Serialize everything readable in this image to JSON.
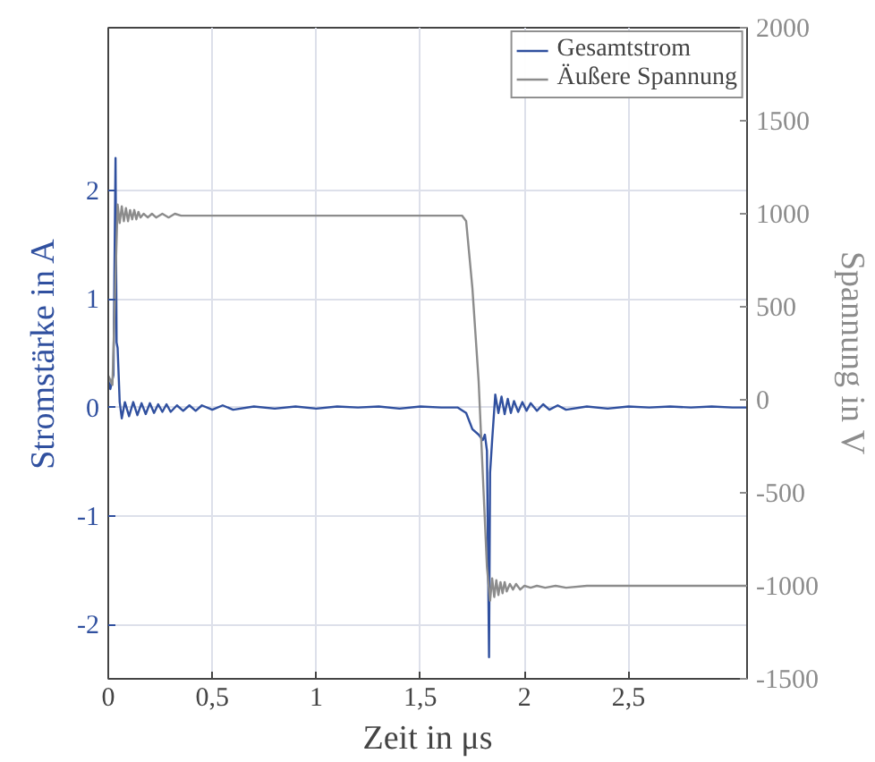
{
  "chart_data": {
    "type": "line",
    "xlabel": "Zeit in μs",
    "ylabel": "Stromstärke in A",
    "y2label": "Spannung in V",
    "xlim": [
      0,
      3.07
    ],
    "xticks": [
      0,
      {
        "value": 0.5,
        "label": "0,5"
      },
      1,
      {
        "value": 1.5,
        "label": "1,5"
      },
      2,
      {
        "value": 2.5,
        "label": "2,5"
      }
    ],
    "ylim": [
      -2.5,
      3.5
    ],
    "yticks": [
      -2,
      -1,
      0,
      1,
      2
    ],
    "y2lim": [
      -1500,
      2000
    ],
    "y2ticks": [
      -1500,
      -1000,
      -500,
      0,
      500,
      1000,
      1500,
      2000
    ],
    "grid": true,
    "legend": "top right",
    "line_style": "solid",
    "series": [
      {
        "name": "Gesamtstrom",
        "color": "#30509f",
        "axis": "y",
        "x": [
          0,
          0.01,
          0.025,
          0.035,
          0.04,
          0.045,
          0.055,
          0.065,
          0.08,
          0.1,
          0.12,
          0.14,
          0.16,
          0.18,
          0.2,
          0.22,
          0.24,
          0.26,
          0.28,
          0.3,
          0.33,
          0.36,
          0.39,
          0.42,
          0.45,
          0.5,
          0.55,
          0.6,
          0.7,
          0.8,
          0.9,
          1.0,
          1.1,
          1.2,
          1.3,
          1.4,
          1.5,
          1.6,
          1.68,
          1.72,
          1.75,
          1.78,
          1.8,
          1.81,
          1.82,
          1.83,
          1.835,
          1.845,
          1.86,
          1.875,
          1.89,
          1.905,
          1.92,
          1.935,
          1.95,
          1.97,
          1.99,
          2.01,
          2.03,
          2.06,
          2.09,
          2.12,
          2.16,
          2.2,
          2.3,
          2.4,
          2.5,
          2.6,
          2.7,
          2.8,
          2.9,
          3.0,
          3.07
        ],
        "values": [
          0.25,
          0.17,
          0.3,
          2.3,
          0.6,
          0.55,
          0.05,
          -0.1,
          0.05,
          -0.08,
          0.05,
          -0.07,
          0.04,
          -0.06,
          0.04,
          -0.05,
          0.03,
          -0.04,
          0.03,
          -0.04,
          0.02,
          -0.03,
          0.02,
          -0.03,
          0.02,
          -0.02,
          0.02,
          -0.02,
          0.01,
          -0.01,
          0.01,
          -0.01,
          0.01,
          0,
          0.01,
          -0.01,
          0.01,
          0,
          0,
          -0.05,
          -0.2,
          -0.25,
          -0.3,
          -0.25,
          -0.4,
          -2.3,
          -0.6,
          -0.3,
          0.12,
          -0.05,
          0.1,
          -0.06,
          0.08,
          -0.05,
          0.06,
          -0.04,
          0.05,
          -0.03,
          0.04,
          -0.03,
          0.03,
          -0.02,
          0.02,
          -0.02,
          0.01,
          -0.01,
          0.01,
          0,
          0.01,
          0,
          0.01,
          0,
          0
        ]
      },
      {
        "name": "Äußere Spannung",
        "color": "#8c8c8c",
        "axis": "y2",
        "x": [
          0,
          0.02,
          0.045,
          0.055,
          0.065,
          0.075,
          0.085,
          0.095,
          0.105,
          0.115,
          0.125,
          0.135,
          0.145,
          0.155,
          0.17,
          0.19,
          0.21,
          0.23,
          0.26,
          0.29,
          0.32,
          0.35,
          0.4,
          0.45,
          0.5,
          0.6,
          0.7,
          0.8,
          0.9,
          1.0,
          1.2,
          1.4,
          1.6,
          1.7,
          1.72,
          1.75,
          1.78,
          1.8,
          1.82,
          1.835,
          1.845,
          1.855,
          1.865,
          1.875,
          1.885,
          1.895,
          1.905,
          1.915,
          1.93,
          1.945,
          1.96,
          1.98,
          2.0,
          2.03,
          2.06,
          2.1,
          2.15,
          2.2,
          2.3,
          2.4,
          2.6,
          2.8,
          3.0,
          3.07
        ],
        "values": [
          130,
          80,
          1050,
          950,
          1040,
          960,
          1030,
          960,
          1020,
          970,
          1020,
          970,
          1010,
          980,
          1000,
          980,
          1000,
          980,
          1000,
          980,
          1000,
          990,
          990,
          990,
          990,
          990,
          990,
          990,
          990,
          990,
          990,
          990,
          990,
          990,
          960,
          600,
          100,
          -400,
          -900,
          -1080,
          -960,
          -1060,
          -970,
          -1050,
          -980,
          -1040,
          -980,
          -1030,
          -990,
          -1020,
          -990,
          -1020,
          -1000,
          -1010,
          -1000,
          -1010,
          -1000,
          -1010,
          -1000,
          -1000,
          -1000,
          -1000,
          -1000,
          -1000
        ]
      }
    ]
  }
}
